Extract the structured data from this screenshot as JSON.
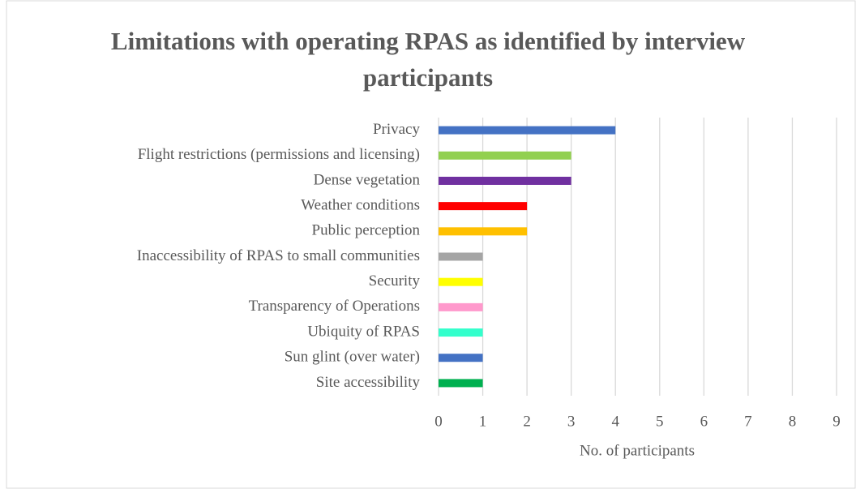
{
  "chart_data": {
    "type": "bar",
    "orientation": "horizontal",
    "title": "Limitations with operating RPAS as identified by interview participants",
    "categories": [
      "Privacy",
      "Flight restrictions (permissions and licensing)",
      "Dense vegetation",
      "Weather conditions",
      "Public perception",
      "Inaccessibility of RPAS to small communities",
      "Security",
      "Transparency of Operations",
      "Ubiquity of RPAS",
      "Sun glint (over water)",
      "Site accessibility"
    ],
    "values": [
      4,
      3,
      3,
      2,
      2,
      1,
      1,
      1,
      1,
      1,
      1
    ],
    "colors": [
      "#4472c4",
      "#92d050",
      "#7030a0",
      "#ff0000",
      "#ffc000",
      "#a5a5a5",
      "#ffff00",
      "#ff99cc",
      "#33ffcc",
      "#4472c4",
      "#00b050"
    ],
    "xlim": [
      0,
      9
    ],
    "xticks": [
      0,
      1,
      2,
      3,
      4,
      5,
      6,
      7,
      8,
      9
    ],
    "xlabel": "No. of participants",
    "grid": true
  }
}
